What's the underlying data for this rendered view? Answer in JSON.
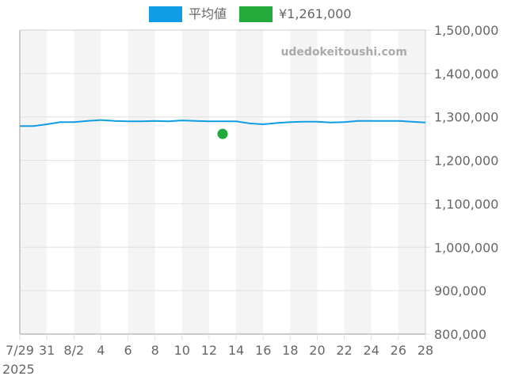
{
  "legend": {
    "average_label": "平均値",
    "average_color": "#0e9de5",
    "current_label": "¥1,261,000",
    "current_color": "#22aa3a"
  },
  "watermark": "udedokeitoushi.com",
  "colors": {
    "band": "#f4f4f4",
    "grid": "#e0e0e0",
    "axis": "#cccccc",
    "text": "#666666"
  },
  "chart_data": {
    "type": "line",
    "title": "",
    "xlabel": "",
    "ylabel": "",
    "ylim": [
      800000,
      1500000
    ],
    "yticks": [
      800000,
      900000,
      1000000,
      1100000,
      1200000,
      1300000,
      1400000,
      1500000
    ],
    "ytick_labels": [
      "800,000",
      "900,000",
      "1,000,000",
      "1,100,000",
      "1,200,000",
      "1,300,000",
      "1,400,000",
      "1,500,000"
    ],
    "xrange_days": [
      0,
      30
    ],
    "xticks": [
      {
        "day": 0,
        "label": "7/29"
      },
      {
        "day": 2,
        "label": "31"
      },
      {
        "day": 4,
        "label": "8/2"
      },
      {
        "day": 6,
        "label": "4"
      },
      {
        "day": 8,
        "label": "6"
      },
      {
        "day": 10,
        "label": "8"
      },
      {
        "day": 12,
        "label": "10"
      },
      {
        "day": 14,
        "label": "12"
      },
      {
        "day": 16,
        "label": "14"
      },
      {
        "day": 18,
        "label": "16"
      },
      {
        "day": 20,
        "label": "18"
      },
      {
        "day": 22,
        "label": "20"
      },
      {
        "day": 24,
        "label": "22"
      },
      {
        "day": 26,
        "label": "24"
      },
      {
        "day": 28,
        "label": "26"
      },
      {
        "day": 30,
        "label": "28"
      }
    ],
    "year_label": "2025",
    "grid": true,
    "legend_position": "top",
    "series": [
      {
        "name": "平均値",
        "type": "line",
        "color": "#0e9de5",
        "points": [
          {
            "date": "7/29",
            "day": 0,
            "value": 1279000
          },
          {
            "date": "7/30",
            "day": 1,
            "value": 1279000
          },
          {
            "date": "7/31",
            "day": 2,
            "value": 1283000
          },
          {
            "date": "8/1",
            "day": 3,
            "value": 1288000
          },
          {
            "date": "8/2",
            "day": 4,
            "value": 1288000
          },
          {
            "date": "8/3",
            "day": 5,
            "value": 1291000
          },
          {
            "date": "8/4",
            "day": 6,
            "value": 1293000
          },
          {
            "date": "8/5",
            "day": 7,
            "value": 1291000
          },
          {
            "date": "8/6",
            "day": 8,
            "value": 1290000
          },
          {
            "date": "8/7",
            "day": 9,
            "value": 1290000
          },
          {
            "date": "8/8",
            "day": 10,
            "value": 1291000
          },
          {
            "date": "8/9",
            "day": 11,
            "value": 1290000
          },
          {
            "date": "8/10",
            "day": 12,
            "value": 1292000
          },
          {
            "date": "8/11",
            "day": 13,
            "value": 1291000
          },
          {
            "date": "8/12",
            "day": 14,
            "value": 1290000
          },
          {
            "date": "8/13",
            "day": 15,
            "value": 1290000
          },
          {
            "date": "8/14",
            "day": 16,
            "value": 1290000
          },
          {
            "date": "8/15",
            "day": 17,
            "value": 1285000
          },
          {
            "date": "8/16",
            "day": 18,
            "value": 1283000
          },
          {
            "date": "8/17",
            "day": 19,
            "value": 1286000
          },
          {
            "date": "8/18",
            "day": 20,
            "value": 1288000
          },
          {
            "date": "8/19",
            "day": 21,
            "value": 1289000
          },
          {
            "date": "8/20",
            "day": 22,
            "value": 1289000
          },
          {
            "date": "8/21",
            "day": 23,
            "value": 1287000
          },
          {
            "date": "8/22",
            "day": 24,
            "value": 1288000
          },
          {
            "date": "8/23",
            "day": 25,
            "value": 1291000
          },
          {
            "date": "8/24",
            "day": 26,
            "value": 1291000
          },
          {
            "date": "8/25",
            "day": 27,
            "value": 1291000
          },
          {
            "date": "8/26",
            "day": 28,
            "value": 1291000
          },
          {
            "date": "8/27",
            "day": 29,
            "value": 1289000
          },
          {
            "date": "8/28",
            "day": 30,
            "value": 1287000
          }
        ]
      },
      {
        "name": "¥1,261,000",
        "type": "scatter",
        "color": "#22aa3a",
        "points": [
          {
            "date": "8/13",
            "day": 15,
            "value": 1261000
          }
        ]
      }
    ]
  }
}
